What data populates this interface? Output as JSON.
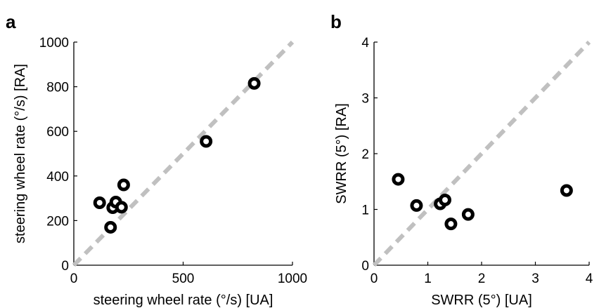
{
  "chart_data": [
    {
      "panel_label": "a",
      "type": "scatter",
      "xlabel": "steering wheel rate (°/s) [UA]",
      "ylabel": "steering wheel rate (°/s) [RA]",
      "xlim": [
        0,
        1000
      ],
      "ylim": [
        0,
        1000
      ],
      "xticks": [
        0,
        500,
        1000
      ],
      "yticks": [
        0,
        200,
        400,
        600,
        800,
        1000
      ],
      "xtick_labels": [
        "0",
        "500",
        "1000"
      ],
      "ytick_labels": [
        "0",
        "200",
        "400",
        "600",
        "800",
        "1000"
      ],
      "reference_line": {
        "style": "dashed",
        "color": "#c0c0c0",
        "from": [
          0,
          0
        ],
        "to": [
          1000,
          1000
        ]
      },
      "marker": {
        "shape": "open-circle",
        "color": "#000000"
      },
      "points": [
        {
          "x": 118,
          "y": 280
        },
        {
          "x": 168,
          "y": 170
        },
        {
          "x": 178,
          "y": 258
        },
        {
          "x": 192,
          "y": 283
        },
        {
          "x": 218,
          "y": 260
        },
        {
          "x": 228,
          "y": 360
        },
        {
          "x": 605,
          "y": 555
        },
        {
          "x": 825,
          "y": 815
        }
      ],
      "grid": false
    },
    {
      "panel_label": "b",
      "type": "scatter",
      "xlabel": "SWRR (5°) [UA]",
      "ylabel": "SWRR (5°) [RA]",
      "xlim": [
        0,
        4
      ],
      "ylim": [
        0,
        4
      ],
      "xticks": [
        0,
        1,
        2,
        3,
        4
      ],
      "yticks": [
        0,
        1,
        2,
        3,
        4
      ],
      "xtick_labels": [
        "0",
        "1",
        "2",
        "3",
        "4"
      ],
      "ytick_labels": [
        "0",
        "1",
        "2",
        "3",
        "4"
      ],
      "reference_line": {
        "style": "dashed",
        "color": "#c0c0c0",
        "from": [
          0,
          0
        ],
        "to": [
          4,
          4
        ]
      },
      "marker": {
        "shape": "open-circle",
        "color": "#000000"
      },
      "points": [
        {
          "x": 0.45,
          "y": 1.54
        },
        {
          "x": 0.79,
          "y": 1.07
        },
        {
          "x": 1.23,
          "y": 1.1
        },
        {
          "x": 1.32,
          "y": 1.17
        },
        {
          "x": 1.43,
          "y": 0.74
        },
        {
          "x": 1.75,
          "y": 0.91
        },
        {
          "x": 3.58,
          "y": 1.34
        }
      ],
      "grid": false
    }
  ]
}
